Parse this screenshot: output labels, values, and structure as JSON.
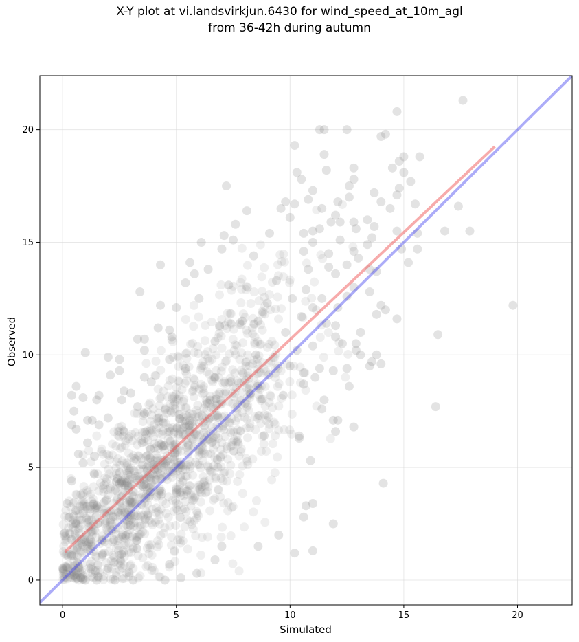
{
  "chart_data": {
    "type": "scatter",
    "title": "X-Y plot at vi.landsvirkjun.6430 for wind_speed_at_10m_agl",
    "subtitle": "from 36-42h during autumn",
    "xlabel": "Simulated",
    "ylabel": "Observed",
    "xlim": [
      -1,
      22.4
    ],
    "ylim": [
      -1.1,
      22.4
    ],
    "xticks": [
      0,
      5,
      10,
      15,
      20
    ],
    "yticks": [
      0,
      5,
      10,
      15,
      20
    ],
    "grid": true,
    "point_color": "#808080",
    "identity_line": {
      "color": "#3a3aee",
      "from": [
        -1,
        -1
      ],
      "to": [
        22.4,
        22.4
      ]
    },
    "regression_line": {
      "color": "#ee4444",
      "from": [
        0.1,
        1.25
      ],
      "to": [
        19.0,
        19.25
      ]
    },
    "points": [
      [
        17.6,
        21.3
      ],
      [
        14.7,
        20.8
      ],
      [
        11.3,
        20.0
      ],
      [
        12.5,
        20.0
      ],
      [
        11.5,
        20.0
      ],
      [
        14.2,
        19.8
      ],
      [
        14.0,
        19.7
      ],
      [
        10.2,
        19.3
      ],
      [
        15.0,
        18.8
      ],
      [
        15.7,
        18.8
      ],
      [
        14.8,
        18.6
      ],
      [
        11.5,
        18.9
      ],
      [
        12.8,
        18.3
      ],
      [
        14.5,
        18.3
      ],
      [
        15.0,
        18.1
      ],
      [
        10.3,
        18.1
      ],
      [
        11.6,
        18.2
      ],
      [
        10.5,
        17.8
      ],
      [
        12.8,
        17.8
      ],
      [
        15.3,
        17.7
      ],
      [
        12.6,
        17.5
      ],
      [
        7.2,
        17.5
      ],
      [
        11.0,
        17.3
      ],
      [
        14.8,
        17.4
      ],
      [
        13.7,
        17.2
      ],
      [
        14.7,
        17.1
      ],
      [
        12.6,
        17.0
      ],
      [
        10.8,
        16.9
      ],
      [
        9.8,
        16.8
      ],
      [
        14.0,
        16.8
      ],
      [
        15.5,
        16.7
      ],
      [
        12.1,
        16.8
      ],
      [
        10.2,
        16.7
      ],
      [
        17.4,
        16.6
      ],
      [
        11.4,
        16.5
      ],
      [
        14.4,
        16.5
      ],
      [
        9.6,
        16.5
      ],
      [
        8.1,
        16.4
      ],
      [
        12.0,
        16.2
      ],
      [
        10.0,
        16.1
      ],
      [
        13.4,
        16.0
      ],
      [
        11.8,
        15.9
      ],
      [
        12.2,
        15.9
      ],
      [
        12.8,
        15.9
      ],
      [
        7.6,
        15.8
      ],
      [
        13.7,
        15.7
      ],
      [
        11.3,
        15.6
      ],
      [
        12.9,
        15.6
      ],
      [
        16.8,
        15.5
      ],
      [
        17.9,
        15.5
      ],
      [
        14.7,
        15.5
      ],
      [
        15.6,
        15.4
      ],
      [
        10.6,
        15.4
      ],
      [
        11.0,
        15.5
      ],
      [
        9.1,
        15.4
      ],
      [
        7.1,
        15.3
      ],
      [
        13.6,
        15.2
      ],
      [
        12.2,
        15.1
      ],
      [
        7.5,
        15.1
      ],
      [
        6.1,
        15.0
      ],
      [
        11.0,
        15.0
      ],
      [
        13.4,
        14.9
      ],
      [
        14.9,
        14.7
      ],
      [
        15.6,
        14.7
      ],
      [
        7.0,
        14.7
      ],
      [
        12.8,
        14.6
      ],
      [
        10.6,
        14.6
      ],
      [
        8.4,
        14.4
      ],
      [
        11.7,
        14.5
      ],
      [
        13.0,
        14.3
      ],
      [
        15.2,
        14.1
      ],
      [
        12.5,
        14.0
      ],
      [
        5.6,
        14.1
      ],
      [
        4.3,
        14.0
      ],
      [
        11.7,
        13.9
      ],
      [
        12.0,
        13.6
      ],
      [
        10.8,
        13.8
      ],
      [
        13.5,
        13.8
      ],
      [
        6.4,
        13.8
      ],
      [
        5.8,
        13.6
      ],
      [
        13.8,
        13.7
      ],
      [
        9.4,
        13.3
      ],
      [
        5.4,
        13.2
      ],
      [
        7.3,
        13.1
      ],
      [
        12.8,
        13.0
      ],
      [
        10.7,
        12.9
      ],
      [
        13.5,
        12.8
      ],
      [
        3.4,
        12.8
      ],
      [
        10.1,
        12.5
      ],
      [
        12.5,
        12.6
      ],
      [
        11.4,
        12.5
      ],
      [
        6.0,
        12.5
      ],
      [
        14.0,
        12.2
      ],
      [
        9.0,
        12.3
      ],
      [
        4.3,
        12.2
      ],
      [
        5.0,
        12.1
      ],
      [
        12.1,
        12.1
      ],
      [
        11.0,
        12.1
      ],
      [
        14.2,
        12.0
      ],
      [
        19.8,
        12.2
      ],
      [
        13.8,
        11.8
      ],
      [
        10.5,
        11.7
      ],
      [
        14.7,
        11.6
      ],
      [
        7.9,
        11.5
      ],
      [
        8.6,
        11.5
      ],
      [
        11.6,
        11.4
      ],
      [
        12.0,
        11.3
      ],
      [
        6.9,
        11.3
      ],
      [
        4.2,
        11.2
      ],
      [
        13.1,
        11.0
      ],
      [
        4.7,
        11.1
      ],
      [
        9.8,
        11.0
      ],
      [
        12.0,
        10.8
      ],
      [
        16.5,
        10.9
      ],
      [
        4.8,
        10.8
      ],
      [
        3.6,
        10.7
      ],
      [
        3.3,
        10.7
      ],
      [
        12.3,
        10.5
      ],
      [
        12.9,
        10.5
      ],
      [
        6.7,
        10.6
      ],
      [
        11.0,
        10.4
      ],
      [
        10.3,
        10.2
      ],
      [
        12.9,
        10.2
      ],
      [
        3.6,
        10.2
      ],
      [
        13.8,
        10.0
      ],
      [
        13.1,
        10.0
      ],
      [
        8.5,
        10.0
      ],
      [
        1.0,
        10.1
      ],
      [
        2.0,
        9.9
      ],
      [
        4.7,
        9.8
      ],
      [
        2.5,
        9.8
      ],
      [
        13.6,
        9.7
      ],
      [
        14.0,
        9.6
      ],
      [
        13.5,
        9.5
      ],
      [
        10.0,
        9.5
      ],
      [
        11.3,
        9.4
      ],
      [
        12.5,
        9.4
      ],
      [
        5.4,
        9.4
      ],
      [
        2.5,
        9.3
      ],
      [
        11.9,
        9.3
      ],
      [
        10.6,
        9.2
      ],
      [
        2.1,
        9.1
      ],
      [
        3.6,
        9.0
      ],
      [
        11.1,
        9.0
      ],
      [
        6.7,
        9.0
      ],
      [
        3.9,
        8.8
      ],
      [
        10.6,
        8.7
      ],
      [
        12.6,
        8.6
      ],
      [
        0.6,
        8.6
      ],
      [
        2.7,
        8.4
      ],
      [
        1.6,
        8.2
      ],
      [
        3.0,
        8.3
      ],
      [
        0.4,
        8.2
      ],
      [
        0.9,
        8.1
      ],
      [
        1.5,
        8.0
      ],
      [
        11.5,
        8.0
      ],
      [
        9.7,
        8.2
      ],
      [
        2.6,
        8.0
      ],
      [
        3.3,
        7.7
      ],
      [
        16.4,
        7.7
      ],
      [
        11.4,
        7.6
      ],
      [
        0.5,
        7.5
      ],
      [
        3.6,
        7.4
      ],
      [
        1.3,
        7.1
      ],
      [
        1.1,
        7.1
      ],
      [
        2.0,
        7.2
      ],
      [
        11.9,
        7.1
      ],
      [
        12.1,
        7.1
      ],
      [
        1.6,
        6.9
      ],
      [
        0.4,
        6.9
      ],
      [
        0.6,
        6.7
      ],
      [
        2.7,
        6.6
      ],
      [
        12.0,
        6.6
      ],
      [
        12.8,
        6.8
      ],
      [
        10.4,
        6.4
      ],
      [
        10.4,
        6.3
      ],
      [
        3.5,
        6.1
      ],
      [
        1.1,
        6.1
      ],
      [
        0.7,
        5.6
      ],
      [
        1.4,
        5.5
      ],
      [
        0.9,
        5.2
      ],
      [
        10.9,
        5.3
      ],
      [
        1.4,
        4.7
      ],
      [
        0.4,
        4.4
      ],
      [
        14.1,
        4.3
      ],
      [
        11.0,
        3.4
      ],
      [
        10.7,
        3.3
      ],
      [
        0.2,
        3.4
      ],
      [
        0.3,
        2.8
      ],
      [
        10.6,
        2.8
      ],
      [
        0.6,
        2.5
      ],
      [
        11.9,
        2.5
      ],
      [
        0.1,
        2.1
      ],
      [
        0.4,
        1.8
      ],
      [
        9.5,
        2.0
      ],
      [
        8.6,
        1.5
      ],
      [
        7.0,
        1.5
      ],
      [
        10.2,
        1.2
      ],
      [
        11.0,
        1.3
      ],
      [
        6.7,
        0.9
      ],
      [
        4.7,
        0.7
      ],
      [
        5.9,
        0.3
      ],
      [
        0.5,
        0.2
      ],
      [
        0.8,
        0.1
      ],
      [
        1.0,
        0.0
      ],
      [
        1.5,
        0.0
      ],
      [
        2.3,
        0.0
      ],
      [
        3.1,
        0.0
      ],
      [
        4.5,
        0.0
      ],
      [
        5.2,
        0.1
      ]
    ]
  }
}
